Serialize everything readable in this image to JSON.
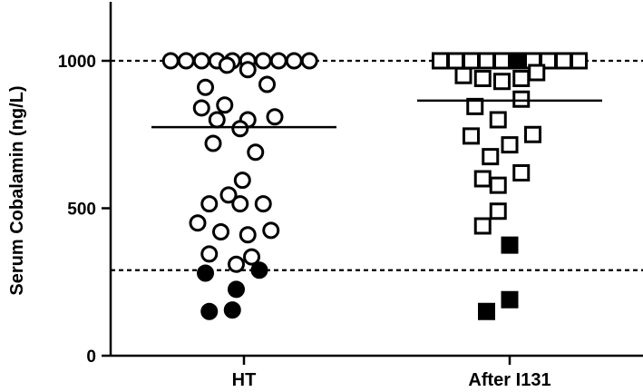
{
  "chart_data": {
    "type": "scatter",
    "title": "",
    "xlabel": "",
    "ylabel": "Serum Cobalamin (ng/L)",
    "ylim": [
      0,
      1200
    ],
    "yticks": [
      "0",
      "500",
      "1000"
    ],
    "grid": false,
    "legend": "none",
    "reference_lines": [
      1000,
      290
    ],
    "categories": [
      "HT",
      "After I131"
    ],
    "series": [
      {
        "category": "HT",
        "marker": "circle",
        "mean": 775,
        "points": [
          {
            "jitter": -0.95,
            "y": 1000,
            "filled": false
          },
          {
            "jitter": -0.75,
            "y": 1000,
            "filled": false
          },
          {
            "jitter": -0.55,
            "y": 1000,
            "filled": false
          },
          {
            "jitter": -0.35,
            "y": 1000,
            "filled": false
          },
          {
            "jitter": -0.15,
            "y": 1000,
            "filled": false
          },
          {
            "jitter": 0.05,
            "y": 1000,
            "filled": false
          },
          {
            "jitter": 0.25,
            "y": 1000,
            "filled": false
          },
          {
            "jitter": 0.45,
            "y": 1000,
            "filled": false
          },
          {
            "jitter": 0.65,
            "y": 1000,
            "filled": false
          },
          {
            "jitter": 0.85,
            "y": 1000,
            "filled": false
          },
          {
            "jitter": -0.22,
            "y": 985,
            "filled": false
          },
          {
            "jitter": 0.05,
            "y": 970,
            "filled": false
          },
          {
            "jitter": -0.5,
            "y": 910,
            "filled": false
          },
          {
            "jitter": 0.3,
            "y": 920,
            "filled": false
          },
          {
            "jitter": -0.55,
            "y": 840,
            "filled": false
          },
          {
            "jitter": -0.25,
            "y": 850,
            "filled": false
          },
          {
            "jitter": -0.35,
            "y": 800,
            "filled": false
          },
          {
            "jitter": 0.05,
            "y": 800,
            "filled": false
          },
          {
            "jitter": 0.4,
            "y": 810,
            "filled": false
          },
          {
            "jitter": -0.05,
            "y": 770,
            "filled": false
          },
          {
            "jitter": -0.4,
            "y": 720,
            "filled": false
          },
          {
            "jitter": 0.15,
            "y": 690,
            "filled": false
          },
          {
            "jitter": -0.02,
            "y": 595,
            "filled": false
          },
          {
            "jitter": -0.2,
            "y": 545,
            "filled": false
          },
          {
            "jitter": -0.45,
            "y": 515,
            "filled": false
          },
          {
            "jitter": -0.05,
            "y": 515,
            "filled": false
          },
          {
            "jitter": 0.25,
            "y": 515,
            "filled": false
          },
          {
            "jitter": -0.6,
            "y": 450,
            "filled": false
          },
          {
            "jitter": -0.3,
            "y": 420,
            "filled": false
          },
          {
            "jitter": 0.05,
            "y": 410,
            "filled": false
          },
          {
            "jitter": 0.35,
            "y": 425,
            "filled": false
          },
          {
            "jitter": -0.45,
            "y": 345,
            "filled": false
          },
          {
            "jitter": 0.1,
            "y": 335,
            "filled": false
          },
          {
            "jitter": -0.1,
            "y": 310,
            "filled": false
          },
          {
            "jitter": -0.5,
            "y": 280,
            "filled": true
          },
          {
            "jitter": 0.2,
            "y": 290,
            "filled": true
          },
          {
            "jitter": -0.1,
            "y": 225,
            "filled": true
          },
          {
            "jitter": -0.45,
            "y": 150,
            "filled": true
          },
          {
            "jitter": -0.15,
            "y": 155,
            "filled": true
          }
        ]
      },
      {
        "category": "After I131",
        "marker": "square",
        "mean": 865,
        "points": [
          {
            "jitter": -0.9,
            "y": 1000,
            "filled": false
          },
          {
            "jitter": -0.7,
            "y": 1000,
            "filled": false
          },
          {
            "jitter": -0.5,
            "y": 1000,
            "filled": false
          },
          {
            "jitter": -0.3,
            "y": 1000,
            "filled": false
          },
          {
            "jitter": -0.1,
            "y": 1000,
            "filled": false
          },
          {
            "jitter": 0.1,
            "y": 1000,
            "filled": true
          },
          {
            "jitter": 0.3,
            "y": 1000,
            "filled": false
          },
          {
            "jitter": 0.5,
            "y": 1000,
            "filled": false
          },
          {
            "jitter": 0.7,
            "y": 1000,
            "filled": false
          },
          {
            "jitter": 0.9,
            "y": 1000,
            "filled": false
          },
          {
            "jitter": -0.6,
            "y": 950,
            "filled": false
          },
          {
            "jitter": -0.35,
            "y": 940,
            "filled": false
          },
          {
            "jitter": -0.1,
            "y": 930,
            "filled": false
          },
          {
            "jitter": 0.15,
            "y": 940,
            "filled": false
          },
          {
            "jitter": 0.35,
            "y": 960,
            "filled": false
          },
          {
            "jitter": 0.15,
            "y": 870,
            "filled": false
          },
          {
            "jitter": -0.45,
            "y": 845,
            "filled": false
          },
          {
            "jitter": -0.15,
            "y": 800,
            "filled": false
          },
          {
            "jitter": -0.5,
            "y": 745,
            "filled": false
          },
          {
            "jitter": 0.3,
            "y": 750,
            "filled": false
          },
          {
            "jitter": 0.0,
            "y": 715,
            "filled": false
          },
          {
            "jitter": -0.25,
            "y": 675,
            "filled": false
          },
          {
            "jitter": 0.15,
            "y": 620,
            "filled": false
          },
          {
            "jitter": -0.35,
            "y": 600,
            "filled": false
          },
          {
            "jitter": -0.15,
            "y": 578,
            "filled": false
          },
          {
            "jitter": -0.15,
            "y": 490,
            "filled": false
          },
          {
            "jitter": -0.35,
            "y": 440,
            "filled": false
          },
          {
            "jitter": 0.0,
            "y": 375,
            "filled": true
          },
          {
            "jitter": 0.0,
            "y": 190,
            "filled": true
          },
          {
            "jitter": -0.3,
            "y": 150,
            "filled": true
          }
        ]
      }
    ]
  }
}
